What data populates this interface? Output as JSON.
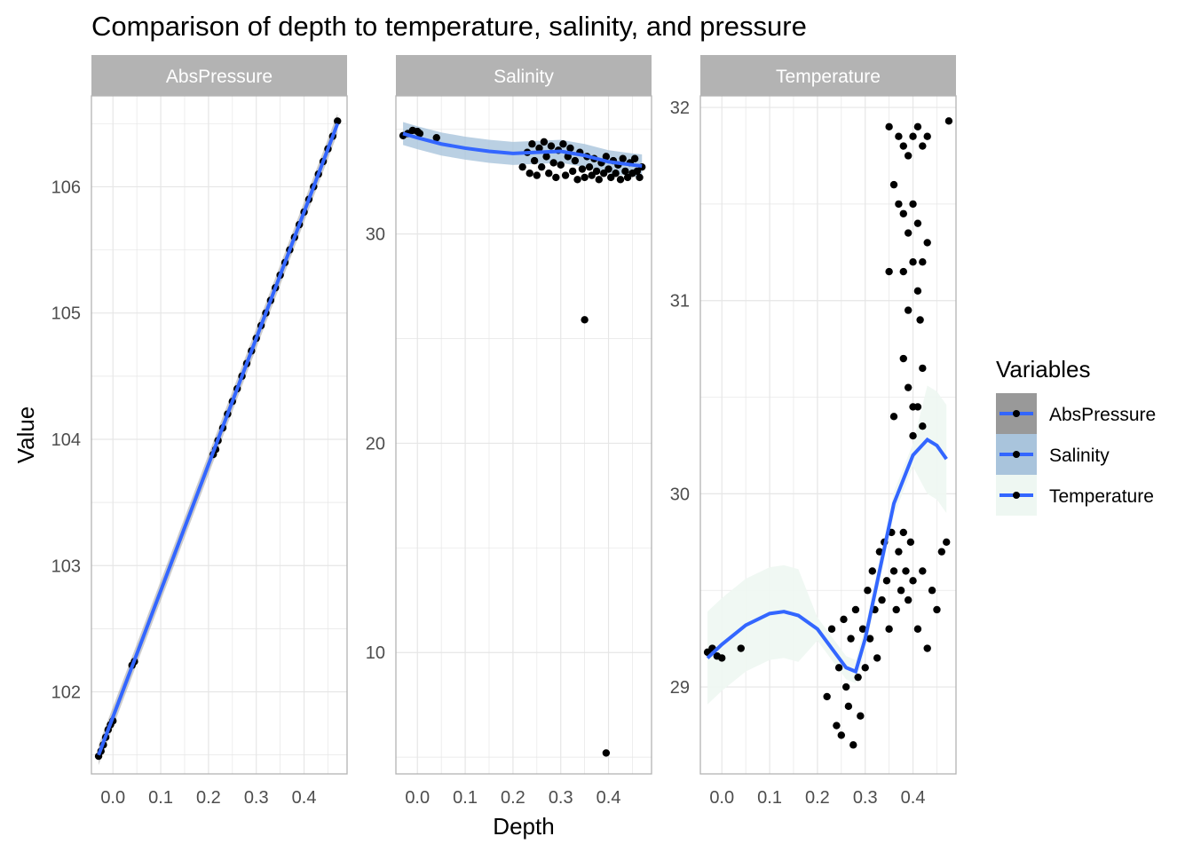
{
  "chart_data": {
    "type": "scatter",
    "title": "Comparison of depth to temperature, salinity, and pressure",
    "xlabel": "Depth",
    "ylabel": "Value",
    "grid": true,
    "legend": {
      "title": "Variables",
      "placement": "right",
      "entries": [
        {
          "label": "AbsPressure",
          "band_color": "#999999"
        },
        {
          "label": "Salinity",
          "band_color": "#a9c4dc"
        },
        {
          "label": "Temperature",
          "band_color": "#eef7f2"
        }
      ]
    },
    "colors": {
      "points": "#000000",
      "smooth_line": "#3366ff",
      "strip": "#b3b3b3"
    },
    "panels": [
      {
        "name": "AbsPressure",
        "xlim": [
          -0.045,
          0.49
        ],
        "ylim": [
          101.35,
          106.72
        ],
        "x_ticks": [
          0.0,
          0.1,
          0.2,
          0.3,
          0.4
        ],
        "x_tick_labels": [
          "0.0",
          "0.1",
          "0.2",
          "0.3",
          "0.4"
        ],
        "y_ticks": [
          102,
          103,
          104,
          105,
          106
        ],
        "y_tick_labels": [
          "102",
          "103",
          "104",
          "105",
          "106"
        ],
        "band_color": "#999999",
        "smooth": {
          "x": [
            -0.03,
            0.47
          ],
          "y": [
            101.5,
            106.5
          ]
        },
        "points": [
          [
            -0.03,
            101.49
          ],
          [
            -0.025,
            101.53
          ],
          [
            -0.02,
            101.58
          ],
          [
            -0.015,
            101.64
          ],
          [
            -0.01,
            101.7
          ],
          [
            -0.005,
            101.74
          ],
          [
            0.0,
            101.77
          ],
          [
            0.04,
            102.21
          ],
          [
            0.045,
            102.24
          ],
          [
            0.21,
            103.88
          ],
          [
            0.215,
            103.92
          ],
          [
            0.22,
            103.99
          ],
          [
            0.23,
            104.09
          ],
          [
            0.24,
            104.2
          ],
          [
            0.25,
            104.3
          ],
          [
            0.26,
            104.4
          ],
          [
            0.27,
            104.5
          ],
          [
            0.28,
            104.6
          ],
          [
            0.29,
            104.7
          ],
          [
            0.3,
            104.8
          ],
          [
            0.31,
            104.9
          ],
          [
            0.32,
            105.0
          ],
          [
            0.33,
            105.1
          ],
          [
            0.34,
            105.2
          ],
          [
            0.35,
            105.3
          ],
          [
            0.36,
            105.4
          ],
          [
            0.37,
            105.5
          ],
          [
            0.38,
            105.6
          ],
          [
            0.39,
            105.7
          ],
          [
            0.4,
            105.8
          ],
          [
            0.41,
            105.9
          ],
          [
            0.42,
            106.0
          ],
          [
            0.43,
            106.1
          ],
          [
            0.44,
            106.2
          ],
          [
            0.45,
            106.3
          ],
          [
            0.46,
            106.4
          ],
          [
            0.47,
            106.52
          ]
        ]
      },
      {
        "name": "Salinity",
        "xlim": [
          -0.045,
          0.49
        ],
        "ylim": [
          4.2,
          36.6
        ],
        "x_ticks": [
          0.0,
          0.1,
          0.2,
          0.3,
          0.4
        ],
        "x_tick_labels": [
          "0.0",
          "0.1",
          "0.2",
          "0.3",
          "0.4"
        ],
        "y_ticks": [
          10,
          20,
          30
        ],
        "y_tick_labels": [
          "10",
          "20",
          "30"
        ],
        "band_color": "#a9c4dc",
        "smooth": {
          "x": [
            -0.03,
            0.0,
            0.05,
            0.1,
            0.15,
            0.2,
            0.25,
            0.3,
            0.35,
            0.4,
            0.45,
            0.47
          ],
          "y": [
            34.8,
            34.6,
            34.3,
            34.1,
            33.95,
            33.85,
            33.9,
            33.95,
            33.75,
            33.45,
            33.3,
            33.25
          ]
        },
        "points": [
          [
            -0.03,
            34.7
          ],
          [
            -0.02,
            34.8
          ],
          [
            -0.01,
            34.95
          ],
          [
            0.0,
            34.9
          ],
          [
            0.005,
            34.8
          ],
          [
            0.04,
            34.6
          ],
          [
            0.22,
            33.2
          ],
          [
            0.23,
            33.9
          ],
          [
            0.235,
            32.9
          ],
          [
            0.24,
            34.3
          ],
          [
            0.245,
            33.5
          ],
          [
            0.25,
            32.8
          ],
          [
            0.255,
            34.1
          ],
          [
            0.26,
            33.2
          ],
          [
            0.265,
            34.4
          ],
          [
            0.27,
            33.7
          ],
          [
            0.275,
            32.9
          ],
          [
            0.28,
            34.2
          ],
          [
            0.285,
            33.4
          ],
          [
            0.29,
            32.7
          ],
          [
            0.295,
            34.0
          ],
          [
            0.3,
            33.3
          ],
          [
            0.305,
            34.3
          ],
          [
            0.31,
            32.8
          ],
          [
            0.315,
            33.7
          ],
          [
            0.32,
            34.1
          ],
          [
            0.325,
            33.0
          ],
          [
            0.33,
            33.5
          ],
          [
            0.335,
            32.6
          ],
          [
            0.34,
            33.9
          ],
          [
            0.345,
            33.1
          ],
          [
            0.35,
            32.7
          ],
          [
            0.355,
            33.7
          ],
          [
            0.36,
            33.2
          ],
          [
            0.365,
            32.8
          ],
          [
            0.37,
            33.6
          ],
          [
            0.375,
            33.0
          ],
          [
            0.38,
            32.6
          ],
          [
            0.385,
            33.4
          ],
          [
            0.39,
            32.9
          ],
          [
            0.395,
            33.7
          ],
          [
            0.4,
            33.1
          ],
          [
            0.405,
            32.7
          ],
          [
            0.41,
            33.5
          ],
          [
            0.415,
            32.9
          ],
          [
            0.42,
            33.3
          ],
          [
            0.425,
            32.6
          ],
          [
            0.43,
            33.6
          ],
          [
            0.435,
            33.0
          ],
          [
            0.44,
            32.7
          ],
          [
            0.445,
            33.4
          ],
          [
            0.45,
            32.9
          ],
          [
            0.455,
            33.6
          ],
          [
            0.46,
            33.0
          ],
          [
            0.465,
            32.7
          ],
          [
            0.47,
            33.2
          ],
          [
            0.35,
            25.9
          ],
          [
            0.395,
            5.2
          ]
        ]
      },
      {
        "name": "Temperature",
        "xlim": [
          -0.045,
          0.49
        ],
        "ylim": [
          28.55,
          32.06
        ],
        "x_ticks": [
          0.0,
          0.1,
          0.2,
          0.3,
          0.4
        ],
        "x_tick_labels": [
          "0.0",
          "0.1",
          "0.2",
          "0.3",
          "0.4"
        ],
        "y_ticks": [
          29,
          30,
          31,
          32
        ],
        "y_tick_labels": [
          "29",
          "30",
          "31",
          "32"
        ],
        "band_color": "#eef7f2",
        "smooth": {
          "x": [
            -0.03,
            0.0,
            0.05,
            0.1,
            0.13,
            0.16,
            0.2,
            0.23,
            0.26,
            0.28,
            0.3,
            0.33,
            0.36,
            0.4,
            0.43,
            0.45,
            0.47
          ],
          "y": [
            29.15,
            29.22,
            29.32,
            29.38,
            29.39,
            29.37,
            29.3,
            29.2,
            29.1,
            29.08,
            29.25,
            29.6,
            29.95,
            30.2,
            30.28,
            30.25,
            30.18
          ]
        },
        "points": [
          [
            -0.03,
            29.18
          ],
          [
            -0.02,
            29.2
          ],
          [
            -0.01,
            29.16
          ],
          [
            0.0,
            29.15
          ],
          [
            0.04,
            29.2
          ],
          [
            0.22,
            28.95
          ],
          [
            0.23,
            29.3
          ],
          [
            0.24,
            28.8
          ],
          [
            0.245,
            29.1
          ],
          [
            0.25,
            28.75
          ],
          [
            0.255,
            29.35
          ],
          [
            0.26,
            29.0
          ],
          [
            0.265,
            28.9
          ],
          [
            0.27,
            29.25
          ],
          [
            0.275,
            28.7
          ],
          [
            0.28,
            29.4
          ],
          [
            0.285,
            29.05
          ],
          [
            0.29,
            28.85
          ],
          [
            0.295,
            29.3
          ],
          [
            0.3,
            29.1
          ],
          [
            0.305,
            29.5
          ],
          [
            0.31,
            29.25
          ],
          [
            0.315,
            29.6
          ],
          [
            0.32,
            29.4
          ],
          [
            0.325,
            29.15
          ],
          [
            0.33,
            29.7
          ],
          [
            0.335,
            29.45
          ],
          [
            0.34,
            29.75
          ],
          [
            0.345,
            29.55
          ],
          [
            0.35,
            29.3
          ],
          [
            0.355,
            29.8
          ],
          [
            0.36,
            29.6
          ],
          [
            0.365,
            29.4
          ],
          [
            0.37,
            29.7
          ],
          [
            0.375,
            29.5
          ],
          [
            0.38,
            29.8
          ],
          [
            0.385,
            29.6
          ],
          [
            0.39,
            29.45
          ],
          [
            0.395,
            29.75
          ],
          [
            0.4,
            29.55
          ],
          [
            0.41,
            29.3
          ],
          [
            0.42,
            29.6
          ],
          [
            0.43,
            29.2
          ],
          [
            0.44,
            29.5
          ],
          [
            0.45,
            29.4
          ],
          [
            0.46,
            29.7
          ],
          [
            0.47,
            29.75
          ],
          [
            0.35,
            31.9
          ],
          [
            0.37,
            31.85
          ],
          [
            0.38,
            31.8
          ],
          [
            0.39,
            31.75
          ],
          [
            0.4,
            31.85
          ],
          [
            0.41,
            31.9
          ],
          [
            0.42,
            31.8
          ],
          [
            0.43,
            31.85
          ],
          [
            0.475,
            31.93
          ],
          [
            0.36,
            31.6
          ],
          [
            0.37,
            31.5
          ],
          [
            0.38,
            31.45
          ],
          [
            0.39,
            31.35
          ],
          [
            0.4,
            31.5
          ],
          [
            0.41,
            31.4
          ],
          [
            0.42,
            31.2
          ],
          [
            0.43,
            31.3
          ],
          [
            0.35,
            31.15
          ],
          [
            0.38,
            31.15
          ],
          [
            0.4,
            31.2
          ],
          [
            0.41,
            31.05
          ],
          [
            0.415,
            30.9
          ],
          [
            0.39,
            30.95
          ],
          [
            0.38,
            30.7
          ],
          [
            0.42,
            30.65
          ],
          [
            0.39,
            30.55
          ],
          [
            0.4,
            30.45
          ],
          [
            0.41,
            30.45
          ],
          [
            0.42,
            30.35
          ],
          [
            0.36,
            30.4
          ],
          [
            0.4,
            30.3
          ]
        ]
      }
    ]
  }
}
